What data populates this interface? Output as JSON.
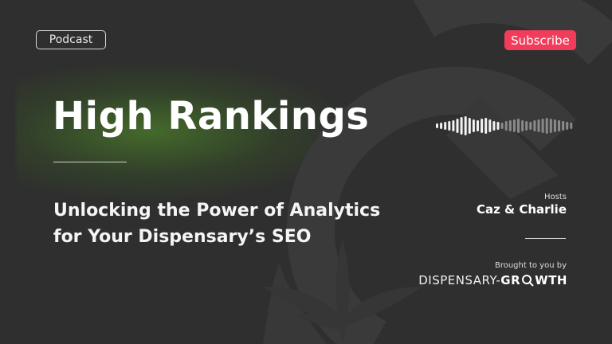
{
  "badge": {
    "label": "Podcast"
  },
  "subscribe": {
    "label": "Subscribe"
  },
  "title": "High Rankings",
  "subtitle_lines": [
    "Unlocking the Power of Analytics",
    "for Your Dispensary’s SEO"
  ],
  "hosts": {
    "label": "Hosts",
    "names": "Caz & Charlie"
  },
  "sponsor": {
    "label": "Brought to you by",
    "brand_left": "DISPENSARY-",
    "brand_right_a": "GR",
    "brand_right_b": "WTH"
  },
  "colors": {
    "background": "#2f2f2f",
    "accent": "#f23c5c",
    "glow": "#569c28"
  },
  "icons": [
    "audio-wave-icon",
    "magnifier-icon",
    "cannabis-leaf-icon"
  ]
}
